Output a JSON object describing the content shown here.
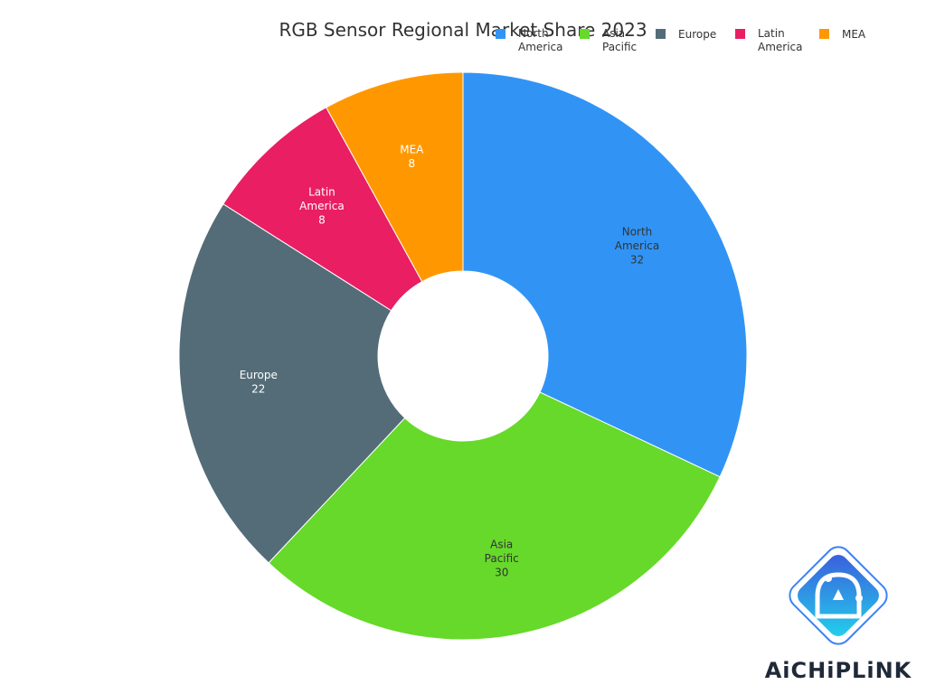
{
  "chart_data": {
    "type": "pie",
    "title": "RGB Sensor Regional Market Share 2023",
    "donut": true,
    "legend_position": "top-right",
    "slices": [
      {
        "label": "North America",
        "value": 32,
        "color": "#3194f5"
      },
      {
        "label": "Asia Pacific",
        "value": 30,
        "color": "#66d92a"
      },
      {
        "label": "Europe",
        "value": 22,
        "color": "#546c78"
      },
      {
        "label": "Latin America",
        "value": 8,
        "color": "#e91e63"
      },
      {
        "label": "MEA",
        "value": 8,
        "color": "#ff9800"
      }
    ],
    "legend_order": [
      "North America",
      "Asia Pacific",
      "Europe",
      "Latin America",
      "MEA"
    ]
  },
  "watermark": {
    "text": "AiCHiPLiNK",
    "icon": "aichiplink-logo-icon"
  }
}
